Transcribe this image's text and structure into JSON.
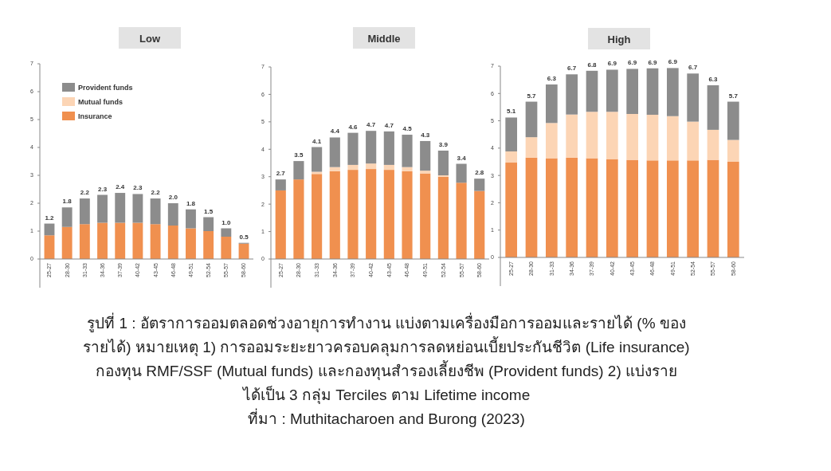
{
  "chart_data": [
    {
      "type": "bar",
      "title": "Low",
      "stacked": true,
      "categories": [
        "25-27",
        "28-30",
        "31-33",
        "34-36",
        "37-39",
        "40-42",
        "43-45",
        "46-48",
        "49-51",
        "52-54",
        "55-57",
        "58-60"
      ],
      "series": [
        {
          "name": "Insurance",
          "color": "#f0904f",
          "values": [
            0.85,
            1.15,
            1.25,
            1.3,
            1.3,
            1.3,
            1.25,
            1.2,
            1.1,
            1.0,
            0.8,
            0.55
          ]
        },
        {
          "name": "Mutual funds",
          "color": "#fcd5b5",
          "values": [
            0,
            0,
            0,
            0,
            0,
            0,
            0,
            0,
            0,
            0,
            0,
            0
          ]
        },
        {
          "name": "Provident funds",
          "color": "#8c8c8c",
          "values": [
            0.42,
            0.7,
            0.92,
            1.0,
            1.07,
            1.03,
            0.92,
            0.8,
            0.68,
            0.5,
            0.3,
            0.03
          ]
        }
      ],
      "totals": [
        "1.2",
        "1.8",
        "2.2",
        "2.3",
        "2.4",
        "2.3",
        "2.2",
        "2.0",
        "1.8",
        "1.5",
        "1.0",
        "0.5"
      ],
      "ylim": [
        0,
        7
      ],
      "yticks": [
        0,
        1,
        2,
        3,
        4,
        5,
        6,
        7
      ],
      "grid": false,
      "legend": "top left",
      "annotations": [
        "รูปที่ 1 : อัตราการออมตลอดช่วงอายุการทำงาน แบ่งตามเครื่องมือการออมและรายได้ (% ของ",
        "รายได้) หมายเหตุ 1) การออมระยะยาวครอบคลุมการลดหย่อนเบี้ยประกันชีวิต (Life insurance)",
        "กองทุน RMF/SSF (Mutual funds) และกองทุนสำรองเลี้ยงชีพ (Provident funds) 2) แบ่งราย",
        "ได้เป็น 3 กลุ่ม Terciles ตาม Lifetime income",
        "ที่มา : Muthitacharoen and Burong (2023)"
      ]
    },
    {
      "type": "bar",
      "title": "Middle",
      "stacked": true,
      "categories": [
        "25-27",
        "28-30",
        "31-33",
        "34-36",
        "37-39",
        "40-42",
        "43-45",
        "46-48",
        "49-51",
        "52-54",
        "55-57",
        "58-60"
      ],
      "series": [
        {
          "color": "#f0904f",
          "values": [
            2.5,
            2.9,
            3.1,
            3.2,
            3.25,
            3.28,
            3.25,
            3.2,
            3.12,
            3.0,
            2.78,
            2.48
          ]
        },
        {
          "color": "#fcd5b5",
          "values": [
            0,
            0,
            0.08,
            0.15,
            0.18,
            0.2,
            0.18,
            0.15,
            0.1,
            0.05,
            0,
            0
          ]
        },
        {
          "color": "#8c8c8c",
          "values": [
            0.4,
            0.67,
            0.9,
            1.08,
            1.17,
            1.19,
            1.22,
            1.18,
            1.08,
            0.9,
            0.69,
            0.45
          ]
        }
      ],
      "totals": [
        "2.7",
        "3.5",
        "4.1",
        "4.4",
        "4.6",
        "4.7",
        "4.7",
        "4.5",
        "4.3",
        "3.9",
        "3.4",
        "2.8"
      ],
      "ylim": [
        0,
        7
      ],
      "yticks": [
        0,
        1,
        2,
        3,
        4,
        5,
        6,
        7
      ],
      "grid": false,
      "legend": false
    },
    {
      "type": "bar",
      "title": "High",
      "stacked": true,
      "categories": [
        "25-27",
        "28-30",
        "31-33",
        "34-36",
        "37-39",
        "40-42",
        "43-45",
        "46-48",
        "49-51",
        "52-54",
        "55-57",
        "58-60"
      ],
      "series": [
        {
          "color": "#f0904f",
          "values": [
            3.47,
            3.65,
            3.63,
            3.65,
            3.63,
            3.6,
            3.57,
            3.55,
            3.55,
            3.55,
            3.57,
            3.5
          ]
        },
        {
          "color": "#fcd5b5",
          "values": [
            0.41,
            0.75,
            1.29,
            1.58,
            1.7,
            1.73,
            1.68,
            1.67,
            1.62,
            1.42,
            1.1,
            0.8
          ]
        },
        {
          "color": "#8c8c8c",
          "values": [
            1.24,
            1.3,
            1.41,
            1.47,
            1.5,
            1.54,
            1.65,
            1.7,
            1.76,
            1.76,
            1.63,
            1.4
          ]
        }
      ],
      "totals": [
        "5.1",
        "5.7",
        "6.3",
        "6.7",
        "6.8",
        "6.9",
        "6.9",
        "6.9",
        "6.9",
        "6.7",
        "6.3",
        "5.7"
      ],
      "ylim": [
        0,
        7
      ],
      "yticks": [
        0,
        1,
        2,
        3,
        4,
        5,
        6,
        7
      ],
      "grid": false,
      "legend": false
    }
  ]
}
